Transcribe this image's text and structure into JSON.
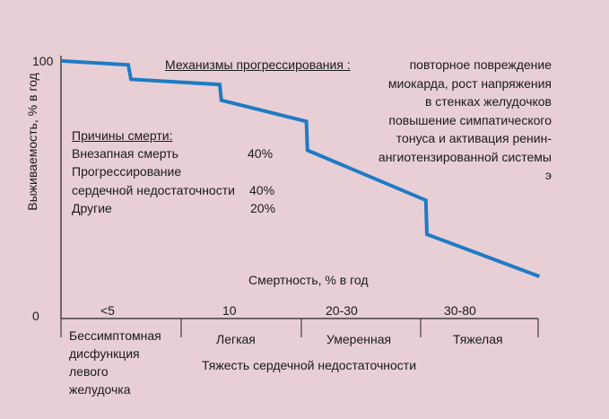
{
  "chart_data": {
    "type": "line",
    "ylabel": "Выживаемость, % в год",
    "y_ticks": [
      "100",
      "0"
    ],
    "ylim": [
      0,
      100
    ],
    "x_range": [
      0,
      100
    ],
    "series": [
      {
        "color": "#1f7bc4",
        "points": [
          {
            "x": 0,
            "y": 98
          },
          {
            "x": 12.5,
            "y": 96.5
          },
          {
            "x": 13,
            "y": 91
          },
          {
            "x": 29.5,
            "y": 89
          },
          {
            "x": 29.8,
            "y": 83
          },
          {
            "x": 45.6,
            "y": 75
          },
          {
            "x": 45.8,
            "y": 64
          },
          {
            "x": 67.8,
            "y": 45
          },
          {
            "x": 68,
            "y": 32
          },
          {
            "x": 88.9,
            "y": 16
          }
        ]
      }
    ],
    "mortality_label": "Смертность, % в год",
    "mortality_values": [
      "<5",
      "10",
      "20-30",
      "30-80"
    ],
    "severity_categories": [
      "Бессимптомная\nдисфункция\nлевого\nжелудочка",
      "Легкая",
      "Умеренная",
      "Тяжелая"
    ],
    "xlabel": "Тяжесть сердечной недостаточности",
    "annotations": {
      "mechanisms_title": "Механизмы прогрессирования :",
      "mechanisms_lines": [
        "повторное повреждение",
        "миокарда, рост напряжения",
        "в стенках желудочков",
        "повышение симпатического",
        "тонуса и активация ренин-",
        "ангиотензированной системы",
        "э"
      ],
      "causes_title": "Причины смерти:",
      "causes": [
        {
          "label": "Внезапная смерть",
          "value": "40%"
        },
        {
          "label": "Прогрессирование",
          "value": ""
        },
        {
          "label": "сердечной недостаточности",
          "value": "40%"
        },
        {
          "label": "Другие",
          "value": "20%"
        }
      ]
    }
  }
}
